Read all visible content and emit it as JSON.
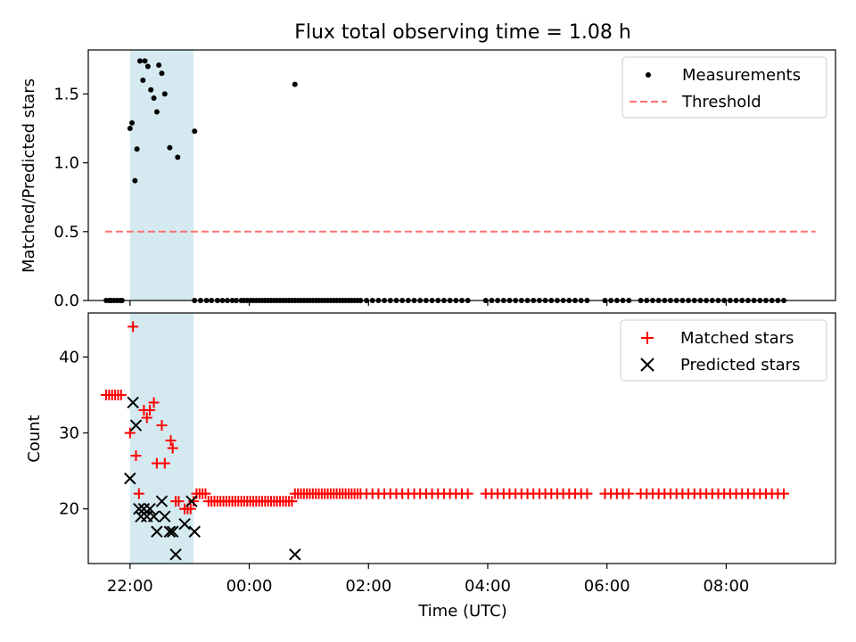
{
  "title": "Flux total observing time = 1.08 h",
  "chart_data": [
    {
      "type": "scatter",
      "ylabel": "Matched/Predicted stars",
      "xlabel": "",
      "xlim": [
        "21:18",
        "33:50"
      ],
      "ylim": [
        0,
        1.82
      ],
      "y_ticks": [
        0.0,
        0.5,
        1.0,
        1.5
      ],
      "y_tick_labels": [
        "0.0",
        "0.5",
        "1.0",
        "1.5"
      ],
      "x_tick_labels_shown": false,
      "highlight_span": {
        "start": "22:00",
        "end": "23:04",
        "color": "#d4eaf0"
      },
      "legend_position": "upper right",
      "legend": {
        "measurements": "Measurements",
        "threshold": "Threshold"
      },
      "threshold": {
        "name": "Threshold",
        "value": 0.5,
        "x_range": [
          "21:35",
          "33:30"
        ],
        "color": "#ff7070",
        "style": "dashed"
      },
      "series": [
        {
          "name": "Measurements",
          "marker": "dot",
          "color": "#000000",
          "points": [
            [
              "22:00",
              1.25
            ],
            [
              "22:02",
              1.29
            ],
            [
              "22:05",
              0.87
            ],
            [
              "22:07",
              1.1
            ],
            [
              "22:10",
              1.74
            ],
            [
              "22:13",
              1.6
            ],
            [
              "22:15",
              1.74
            ],
            [
              "22:18",
              1.7
            ],
            [
              "22:21",
              1.53
            ],
            [
              "22:24",
              1.47
            ],
            [
              "22:27",
              1.37
            ],
            [
              "22:29",
              1.71
            ],
            [
              "22:32",
              1.65
            ],
            [
              "22:35",
              1.5
            ],
            [
              "22:40",
              1.11
            ],
            [
              "22:48",
              1.04
            ],
            [
              "23:05",
              1.23
            ],
            [
              "00:46",
              1.57
            ]
          ],
          "zero_times": [
            "21:36",
            "21:39",
            "21:41",
            "21:44",
            "21:47",
            "21:50",
            "21:52",
            "23:05",
            "23:11",
            "23:17",
            "23:22",
            "23:28",
            "23:33",
            "23:38",
            "23:43",
            "23:47",
            "23:52",
            "23:55",
            "23:58",
            "00:01",
            "00:04",
            "00:07",
            "00:10",
            "00:13",
            "00:16",
            "00:19",
            "00:22",
            "00:25",
            "00:28",
            "00:31",
            "00:34",
            "00:37",
            "00:40",
            "00:43",
            "00:46",
            "00:49",
            "00:52",
            "00:55",
            "00:58",
            "01:01",
            "01:04",
            "01:07",
            "01:10",
            "01:13",
            "01:16",
            "01:19",
            "01:22",
            "01:25",
            "01:28",
            "01:31",
            "01:34",
            "01:37",
            "01:40",
            "01:43",
            "01:46",
            "01:49",
            "01:52",
            "01:58",
            "02:04",
            "02:10",
            "02:16",
            "02:22",
            "02:28",
            "02:34",
            "02:40",
            "02:46",
            "02:52",
            "02:58",
            "03:04",
            "03:10",
            "03:16",
            "03:22",
            "03:28",
            "03:34",
            "03:40",
            "03:58",
            "04:04",
            "04:10",
            "04:16",
            "04:22",
            "04:28",
            "04:34",
            "04:40",
            "04:46",
            "04:52",
            "04:58",
            "05:04",
            "05:10",
            "05:16",
            "05:22",
            "05:28",
            "05:34",
            "05:40",
            "05:58",
            "06:04",
            "06:10",
            "06:16",
            "06:22",
            "06:34",
            "06:40",
            "06:46",
            "06:52",
            "06:58",
            "07:04",
            "07:10",
            "07:16",
            "07:22",
            "07:28",
            "07:34",
            "07:40",
            "07:46",
            "07:52",
            "07:58",
            "08:04",
            "08:10",
            "08:16",
            "08:22",
            "08:28",
            "08:34",
            "08:40",
            "08:46",
            "08:52",
            "08:58"
          ]
        }
      ]
    },
    {
      "type": "scatter",
      "ylabel": "Count",
      "xlabel": "Time (UTC)",
      "xlim": [
        "21:18",
        "33:50"
      ],
      "ylim": [
        12.8,
        45.8
      ],
      "y_ticks": [
        20,
        30,
        40
      ],
      "y_tick_labels": [
        "20",
        "30",
        "40"
      ],
      "x_ticks": [
        "22:00",
        "24:00",
        "26:00",
        "28:00",
        "30:00",
        "32:00"
      ],
      "x_tick_labels": [
        "22:00",
        "00:00",
        "02:00",
        "04:00",
        "06:00",
        "08:00"
      ],
      "highlight_span": {
        "start": "22:00",
        "end": "23:04",
        "color": "#d4eaf0"
      },
      "legend_position": "upper right",
      "series": [
        {
          "name": "Matched stars",
          "marker": "plus",
          "color": "#ff0000",
          "points": [
            [
              "21:36",
              35
            ],
            [
              "21:39",
              35
            ],
            [
              "21:42",
              35
            ],
            [
              "21:45",
              35
            ],
            [
              "21:48",
              35
            ],
            [
              "21:51",
              35
            ],
            [
              "22:00",
              30
            ],
            [
              "22:03",
              44
            ],
            [
              "22:06",
              27
            ],
            [
              "22:09",
              22
            ],
            [
              "22:14",
              33
            ],
            [
              "22:17",
              32
            ],
            [
              "22:20",
              33
            ],
            [
              "22:24",
              34
            ],
            [
              "22:27",
              26
            ],
            [
              "22:32",
              31
            ],
            [
              "22:35",
              26
            ],
            [
              "22:41",
              29
            ],
            [
              "22:43",
              28
            ],
            [
              "22:46",
              21
            ],
            [
              "22:49",
              21
            ],
            [
              "22:55",
              20
            ],
            [
              "22:58",
              20
            ],
            [
              "23:01",
              20
            ],
            [
              "23:04",
              21
            ],
            [
              "23:07",
              22
            ],
            [
              "23:10",
              22
            ],
            [
              "23:13",
              22
            ],
            [
              "23:16",
              22
            ],
            [
              "23:19",
              21
            ],
            [
              "23:22",
              21
            ],
            [
              "23:25",
              21
            ],
            [
              "23:28",
              21
            ],
            [
              "23:31",
              21
            ],
            [
              "23:34",
              21
            ],
            [
              "23:37",
              21
            ],
            [
              "23:40",
              21
            ],
            [
              "23:43",
              21
            ],
            [
              "23:46",
              21
            ],
            [
              "23:49",
              21
            ],
            [
              "23:52",
              21
            ],
            [
              "23:55",
              21
            ],
            [
              "23:58",
              21
            ],
            [
              "00:01",
              21
            ],
            [
              "00:04",
              21
            ],
            [
              "00:07",
              21
            ],
            [
              "00:10",
              21
            ],
            [
              "00:13",
              21
            ],
            [
              "00:16",
              21
            ],
            [
              "00:19",
              21
            ],
            [
              "00:22",
              21
            ],
            [
              "00:25",
              21
            ],
            [
              "00:28",
              21
            ],
            [
              "00:31",
              21
            ],
            [
              "00:34",
              21
            ],
            [
              "00:37",
              21
            ],
            [
              "00:40",
              21
            ],
            [
              "00:43",
              21
            ],
            [
              "00:46",
              22
            ],
            [
              "00:49",
              22
            ],
            [
              "00:52",
              22
            ],
            [
              "00:55",
              22
            ],
            [
              "00:58",
              22
            ],
            [
              "01:01",
              22
            ],
            [
              "01:04",
              22
            ],
            [
              "01:07",
              22
            ],
            [
              "01:10",
              22
            ],
            [
              "01:13",
              22
            ],
            [
              "01:16",
              22
            ],
            [
              "01:19",
              22
            ],
            [
              "01:22",
              22
            ],
            [
              "01:25",
              22
            ],
            [
              "01:28",
              22
            ],
            [
              "01:31",
              22
            ],
            [
              "01:34",
              22
            ],
            [
              "01:37",
              22
            ],
            [
              "01:40",
              22
            ],
            [
              "01:43",
              22
            ],
            [
              "01:46",
              22
            ],
            [
              "01:49",
              22
            ],
            [
              "01:52",
              22
            ],
            [
              "01:58",
              22
            ],
            [
              "02:04",
              22
            ],
            [
              "02:10",
              22
            ],
            [
              "02:16",
              22
            ],
            [
              "02:22",
              22
            ],
            [
              "02:28",
              22
            ],
            [
              "02:34",
              22
            ],
            [
              "02:40",
              22
            ],
            [
              "02:46",
              22
            ],
            [
              "02:52",
              22
            ],
            [
              "02:58",
              22
            ],
            [
              "03:04",
              22
            ],
            [
              "03:10",
              22
            ],
            [
              "03:16",
              22
            ],
            [
              "03:22",
              22
            ],
            [
              "03:28",
              22
            ],
            [
              "03:34",
              22
            ],
            [
              "03:40",
              22
            ],
            [
              "03:58",
              22
            ],
            [
              "04:04",
              22
            ],
            [
              "04:10",
              22
            ],
            [
              "04:16",
              22
            ],
            [
              "04:22",
              22
            ],
            [
              "04:28",
              22
            ],
            [
              "04:34",
              22
            ],
            [
              "04:40",
              22
            ],
            [
              "04:46",
              22
            ],
            [
              "04:52",
              22
            ],
            [
              "04:58",
              22
            ],
            [
              "05:04",
              22
            ],
            [
              "05:10",
              22
            ],
            [
              "05:16",
              22
            ],
            [
              "05:22",
              22
            ],
            [
              "05:28",
              22
            ],
            [
              "05:34",
              22
            ],
            [
              "05:40",
              22
            ],
            [
              "05:58",
              22
            ],
            [
              "06:04",
              22
            ],
            [
              "06:10",
              22
            ],
            [
              "06:16",
              22
            ],
            [
              "06:22",
              22
            ],
            [
              "06:34",
              22
            ],
            [
              "06:40",
              22
            ],
            [
              "06:46",
              22
            ],
            [
              "06:52",
              22
            ],
            [
              "06:58",
              22
            ],
            [
              "07:04",
              22
            ],
            [
              "07:10",
              22
            ],
            [
              "07:16",
              22
            ],
            [
              "07:22",
              22
            ],
            [
              "07:28",
              22
            ],
            [
              "07:34",
              22
            ],
            [
              "07:40",
              22
            ],
            [
              "07:46",
              22
            ],
            [
              "07:52",
              22
            ],
            [
              "07:58",
              22
            ],
            [
              "08:04",
              22
            ],
            [
              "08:10",
              22
            ],
            [
              "08:16",
              22
            ],
            [
              "08:22",
              22
            ],
            [
              "08:28",
              22
            ],
            [
              "08:34",
              22
            ],
            [
              "08:40",
              22
            ],
            [
              "08:46",
              22
            ],
            [
              "08:52",
              22
            ],
            [
              "08:58",
              22
            ]
          ]
        },
        {
          "name": "Predicted stars",
          "marker": "x",
          "color": "#000000",
          "points": [
            [
              "22:00",
              24
            ],
            [
              "22:03",
              34
            ],
            [
              "22:06",
              31
            ],
            [
              "22:09",
              20
            ],
            [
              "22:11",
              19
            ],
            [
              "22:14",
              20
            ],
            [
              "22:17",
              19
            ],
            [
              "22:20",
              20
            ],
            [
              "22:24",
              19
            ],
            [
              "22:27",
              17
            ],
            [
              "22:32",
              21
            ],
            [
              "22:35",
              19
            ],
            [
              "22:40",
              17
            ],
            [
              "22:43",
              17
            ],
            [
              "22:46",
              14
            ],
            [
              "22:55",
              18
            ],
            [
              "23:02",
              21
            ],
            [
              "23:05",
              17
            ],
            [
              "00:46",
              14
            ]
          ]
        }
      ]
    }
  ]
}
